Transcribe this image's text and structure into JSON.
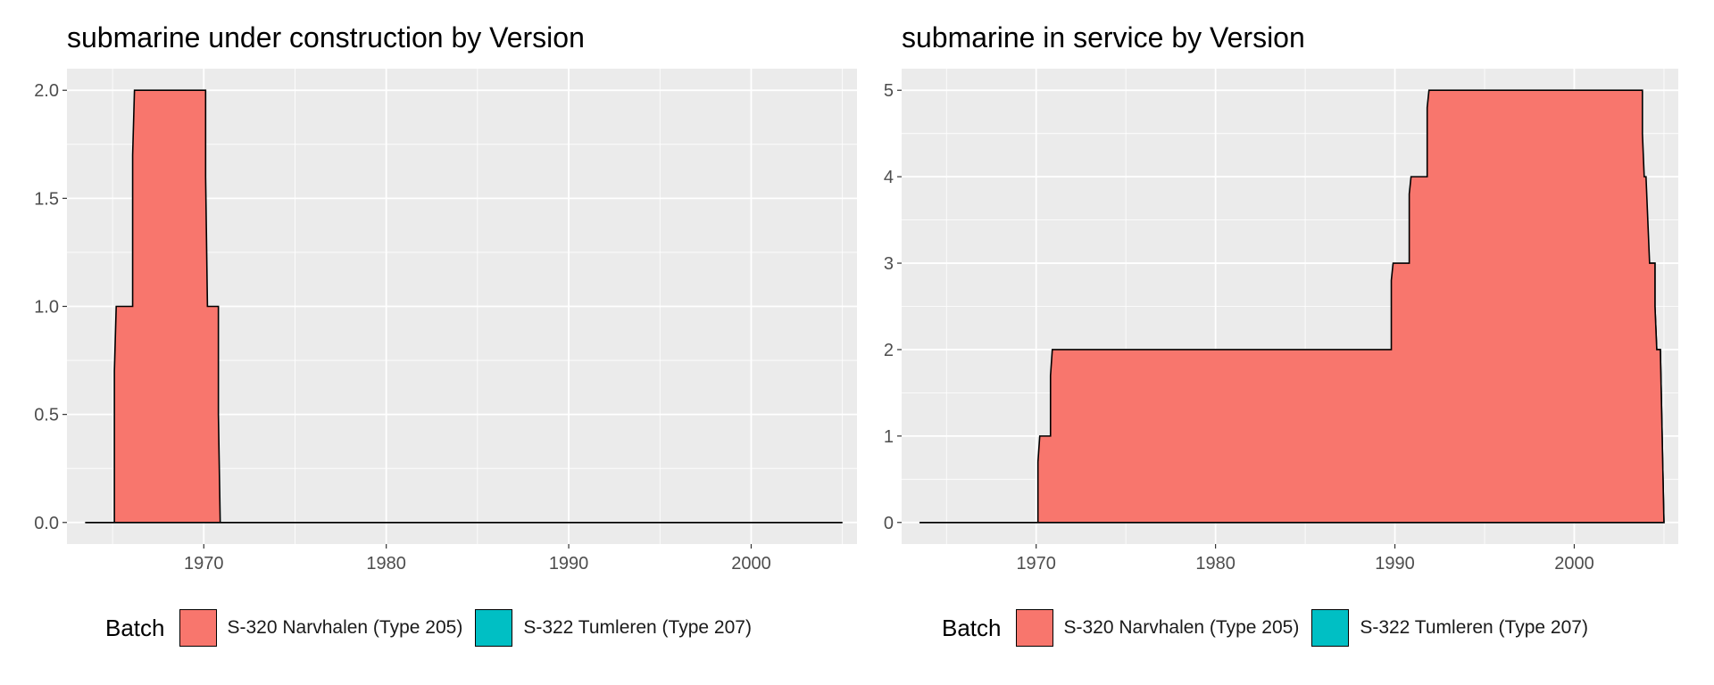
{
  "colors": {
    "panel_background": "#EBEBEB",
    "grid_line": "#FFFFFF",
    "S-320 Narvhalen (Type 205)": "#F8766D",
    "S-322 Tumleren (Type 207)": "#00BFC4",
    "outline": "#000000",
    "tick_text": "#4D4D4D"
  },
  "legend": {
    "title": "Batch",
    "items": [
      "S-320 Narvhalen (Type 205)",
      "S-322 Tumleren (Type 207)"
    ]
  },
  "chart_data": [
    {
      "type": "area",
      "stacked": true,
      "title": "submarine under construction by Version",
      "xlabel": "",
      "ylabel": "",
      "xlim": [
        1962.5,
        2005.8
      ],
      "ylim": [
        -0.1,
        2.1
      ],
      "x_ticks": [
        1970,
        1980,
        1990,
        2000
      ],
      "y_ticks": [
        0.0,
        0.5,
        1.0,
        1.5,
        2.0
      ],
      "y_tick_labels": [
        "0.0",
        "0.5",
        "1.0",
        "1.5",
        "2.0"
      ],
      "grid": true,
      "legend_position": "bottom",
      "x_range": [
        1963.5,
        2005
      ],
      "series": [
        {
          "name": "S-322 Tumleren (Type 207)",
          "points": [
            [
              1963.5,
              0
            ],
            [
              2005,
              0
            ]
          ]
        },
        {
          "name": "S-320 Narvhalen (Type 205)",
          "points": [
            [
              1963.5,
              0
            ],
            [
              1965.1,
              0
            ],
            [
              1965.1,
              0.7
            ],
            [
              1965.2,
              1
            ],
            [
              1966.1,
              1
            ],
            [
              1966.1,
              1.7
            ],
            [
              1966.2,
              2
            ],
            [
              1970.1,
              2
            ],
            [
              1970.1,
              1.6
            ],
            [
              1970.2,
              1
            ],
            [
              1970.8,
              1
            ],
            [
              1970.8,
              0.5
            ],
            [
              1970.9,
              0
            ],
            [
              2005,
              0
            ]
          ]
        }
      ]
    },
    {
      "type": "area",
      "stacked": true,
      "title": "submarine in service by Version",
      "xlabel": "",
      "ylabel": "",
      "xlim": [
        1962.5,
        2005.8
      ],
      "ylim": [
        -0.25,
        5.25
      ],
      "x_ticks": [
        1970,
        1980,
        1990,
        2000
      ],
      "y_ticks": [
        0,
        1,
        2,
        3,
        4,
        5
      ],
      "y_tick_labels": [
        "0",
        "1",
        "2",
        "3",
        "4",
        "5"
      ],
      "grid": true,
      "legend_position": "bottom",
      "x_range": [
        1963.5,
        2005
      ],
      "series": [
        {
          "name": "S-322 Tumleren (Type 207)",
          "points": [
            [
              1963.5,
              0
            ],
            [
              1989.8,
              0
            ],
            [
              1989.8,
              0.8
            ],
            [
              1989.9,
              1
            ],
            [
              1990.8,
              1
            ],
            [
              1990.8,
              1.8
            ],
            [
              1990.9,
              2
            ],
            [
              1991.8,
              2
            ],
            [
              1991.8,
              2.8
            ],
            [
              1991.9,
              3
            ],
            [
              2004.5,
              3
            ],
            [
              2004.5,
              2.5
            ],
            [
              2004.6,
              2
            ],
            [
              2004.8,
              2
            ],
            [
              2004.85,
              1.5
            ],
            [
              2004.9,
              1
            ],
            [
              2005,
              0
            ]
          ]
        },
        {
          "name": "S-320 Narvhalen (Type 205)",
          "points": [
            [
              1963.5,
              0
            ],
            [
              1970.1,
              0
            ],
            [
              1970.1,
              0.7
            ],
            [
              1970.2,
              1
            ],
            [
              1970.8,
              1
            ],
            [
              1970.8,
              1.7
            ],
            [
              1970.9,
              2
            ],
            [
              1989.8,
              2
            ],
            [
              1989.8,
              2.8
            ],
            [
              1989.9,
              3
            ],
            [
              1990.8,
              3
            ],
            [
              1990.8,
              3.8
            ],
            [
              1990.9,
              4
            ],
            [
              1991.8,
              4
            ],
            [
              1991.8,
              4.8
            ],
            [
              1991.9,
              5
            ],
            [
              2003.8,
              5
            ],
            [
              2003.8,
              4.5
            ],
            [
              2003.9,
              4
            ],
            [
              2004.0,
              4
            ],
            [
              2004.1,
              3.5
            ],
            [
              2004.2,
              3
            ],
            [
              2004.5,
              3
            ],
            [
              2004.5,
              2.5
            ],
            [
              2004.6,
              2
            ],
            [
              2004.8,
              2
            ],
            [
              2004.85,
              1.5
            ],
            [
              2004.9,
              1
            ],
            [
              2005,
              0
            ]
          ]
        }
      ]
    }
  ]
}
